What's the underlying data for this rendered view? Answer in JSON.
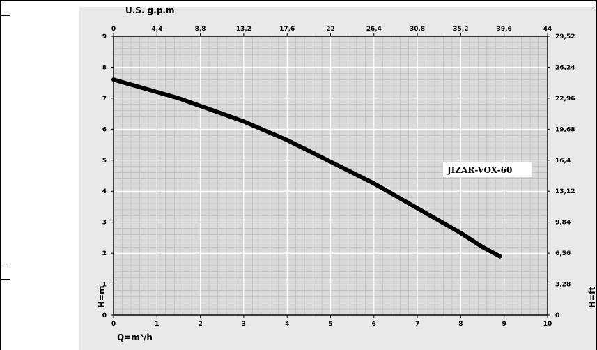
{
  "chart_data": {
    "type": "line",
    "title": "",
    "xlabel": "Q=m³/h",
    "ylabel": "H=m",
    "top_axis_label": "U.S. g.p.m",
    "right_axis_label": "H=ft",
    "xlim": [
      0,
      10
    ],
    "ylim": [
      0,
      9
    ],
    "x_ticks": [
      "0",
      "1",
      "2",
      "3",
      "4",
      "5",
      "6",
      "7",
      "8",
      "9",
      "10"
    ],
    "y_ticks": [
      "0",
      "1",
      "2",
      "3",
      "4",
      "5",
      "6",
      "7",
      "8",
      "9"
    ],
    "top_ticks": [
      "0",
      "4,4",
      "8,8",
      "13,2",
      "17,6",
      "22",
      "26,4",
      "30,8",
      "35,2",
      "39,6",
      "44"
    ],
    "right_ticks": [
      "0",
      "3,28",
      "6,56",
      "9,84",
      "13,12",
      "16,4",
      "19,68",
      "22,96",
      "26,24",
      "29,52"
    ],
    "grid": true,
    "series": [
      {
        "name": "JIZAR-VOX-60",
        "x": [
          0,
          0.5,
          1,
          1.5,
          2,
          2.5,
          3,
          3.5,
          4,
          4.5,
          5,
          5.5,
          6,
          6.5,
          7,
          7.5,
          8,
          8.5,
          8.9
        ],
        "y": [
          7.6,
          7.4,
          7.2,
          7.0,
          6.75,
          6.5,
          6.25,
          5.95,
          5.65,
          5.3,
          4.95,
          4.6,
          4.25,
          3.85,
          3.45,
          3.05,
          2.65,
          2.2,
          1.9
        ]
      }
    ],
    "curve_label": "JIZAR-VOX-60",
    "curve_color": "#000000",
    "plot_background": "#d9d9d9",
    "minor_grid_color": "#bfbfbf",
    "major_grid_color": "#ffffff",
    "chart_background": "#e9e9e9"
  }
}
